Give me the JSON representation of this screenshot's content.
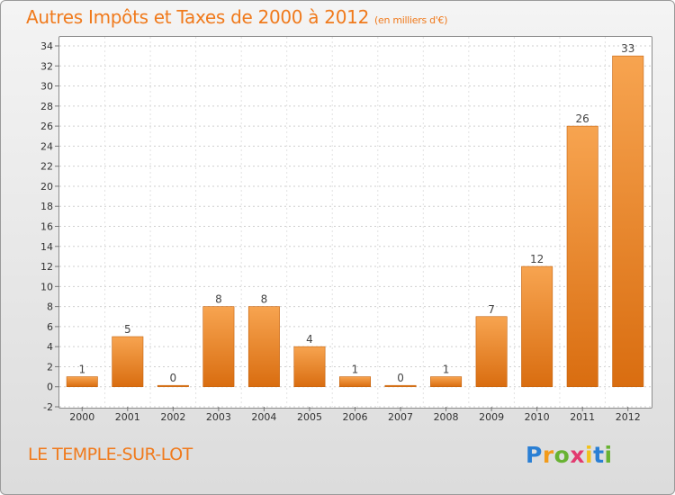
{
  "chart_data": {
    "type": "bar",
    "title": "Autres Impôts et Taxes de 2000 à 2012",
    "subtitle": "(en milliers d'€)",
    "categories": [
      "2000",
      "2001",
      "2002",
      "2003",
      "2004",
      "2005",
      "2006",
      "2007",
      "2008",
      "2009",
      "2010",
      "2011",
      "2012"
    ],
    "values": [
      1,
      5,
      0,
      8,
      8,
      4,
      1,
      0,
      1,
      7,
      12,
      26,
      33
    ],
    "ylim": [
      -2,
      34
    ],
    "yticks": [
      -2,
      0,
      2,
      4,
      6,
      8,
      10,
      12,
      14,
      16,
      18,
      20,
      22,
      24,
      26,
      28,
      30,
      32,
      34
    ],
    "grid": true,
    "bar_color": "#f0852a"
  },
  "footer": {
    "commune": "LE TEMPLE-SUR-LOT",
    "logo_letters": [
      "P",
      "r",
      "o",
      "x",
      "i",
      "t",
      "i"
    ]
  }
}
